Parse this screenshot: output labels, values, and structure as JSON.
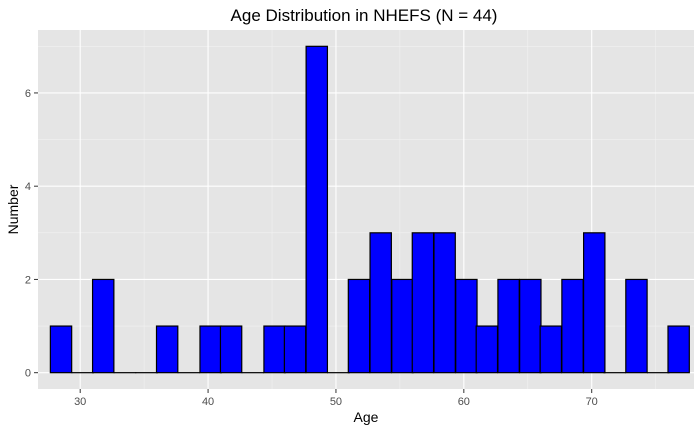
{
  "chart_data": {
    "type": "bar",
    "title": "Age Distribution in NHEFS (N = 44)",
    "xlabel": "Age",
    "ylabel": "Number",
    "bin_width": 1.6667,
    "bins": [
      {
        "x": 28.5,
        "count": 1
      },
      {
        "x": 30.2,
        "count": 0
      },
      {
        "x": 31.8,
        "count": 2
      },
      {
        "x": 33.5,
        "count": 0
      },
      {
        "x": 35.2,
        "count": 0
      },
      {
        "x": 36.8,
        "count": 1
      },
      {
        "x": 38.5,
        "count": 0
      },
      {
        "x": 40.2,
        "count": 1
      },
      {
        "x": 41.8,
        "count": 1
      },
      {
        "x": 43.5,
        "count": 0
      },
      {
        "x": 45.2,
        "count": 1
      },
      {
        "x": 46.8,
        "count": 1
      },
      {
        "x": 48.5,
        "count": 7
      },
      {
        "x": 50.2,
        "count": 0
      },
      {
        "x": 51.8,
        "count": 2
      },
      {
        "x": 53.5,
        "count": 3
      },
      {
        "x": 55.2,
        "count": 2
      },
      {
        "x": 56.8,
        "count": 3
      },
      {
        "x": 58.5,
        "count": 3
      },
      {
        "x": 60.2,
        "count": 2
      },
      {
        "x": 61.8,
        "count": 1
      },
      {
        "x": 63.5,
        "count": 2
      },
      {
        "x": 65.2,
        "count": 2
      },
      {
        "x": 66.8,
        "count": 1
      },
      {
        "x": 68.5,
        "count": 2
      },
      {
        "x": 70.2,
        "count": 3
      },
      {
        "x": 71.8,
        "count": 0
      },
      {
        "x": 73.5,
        "count": 2
      },
      {
        "x": 75.2,
        "count": 0
      },
      {
        "x": 76.8,
        "count": 1
      }
    ],
    "xlim": [
      26.7,
      78.0
    ],
    "ylim": [
      -0.35,
      7.35
    ],
    "x_ticks": [
      30,
      40,
      50,
      60,
      70
    ],
    "y_ticks": [
      0,
      2,
      4,
      6
    ],
    "bar_color": "#0000ff",
    "bar_edge_color": "#000000",
    "panel_color": "#e5e5e5",
    "grid": true,
    "legend": "none"
  }
}
